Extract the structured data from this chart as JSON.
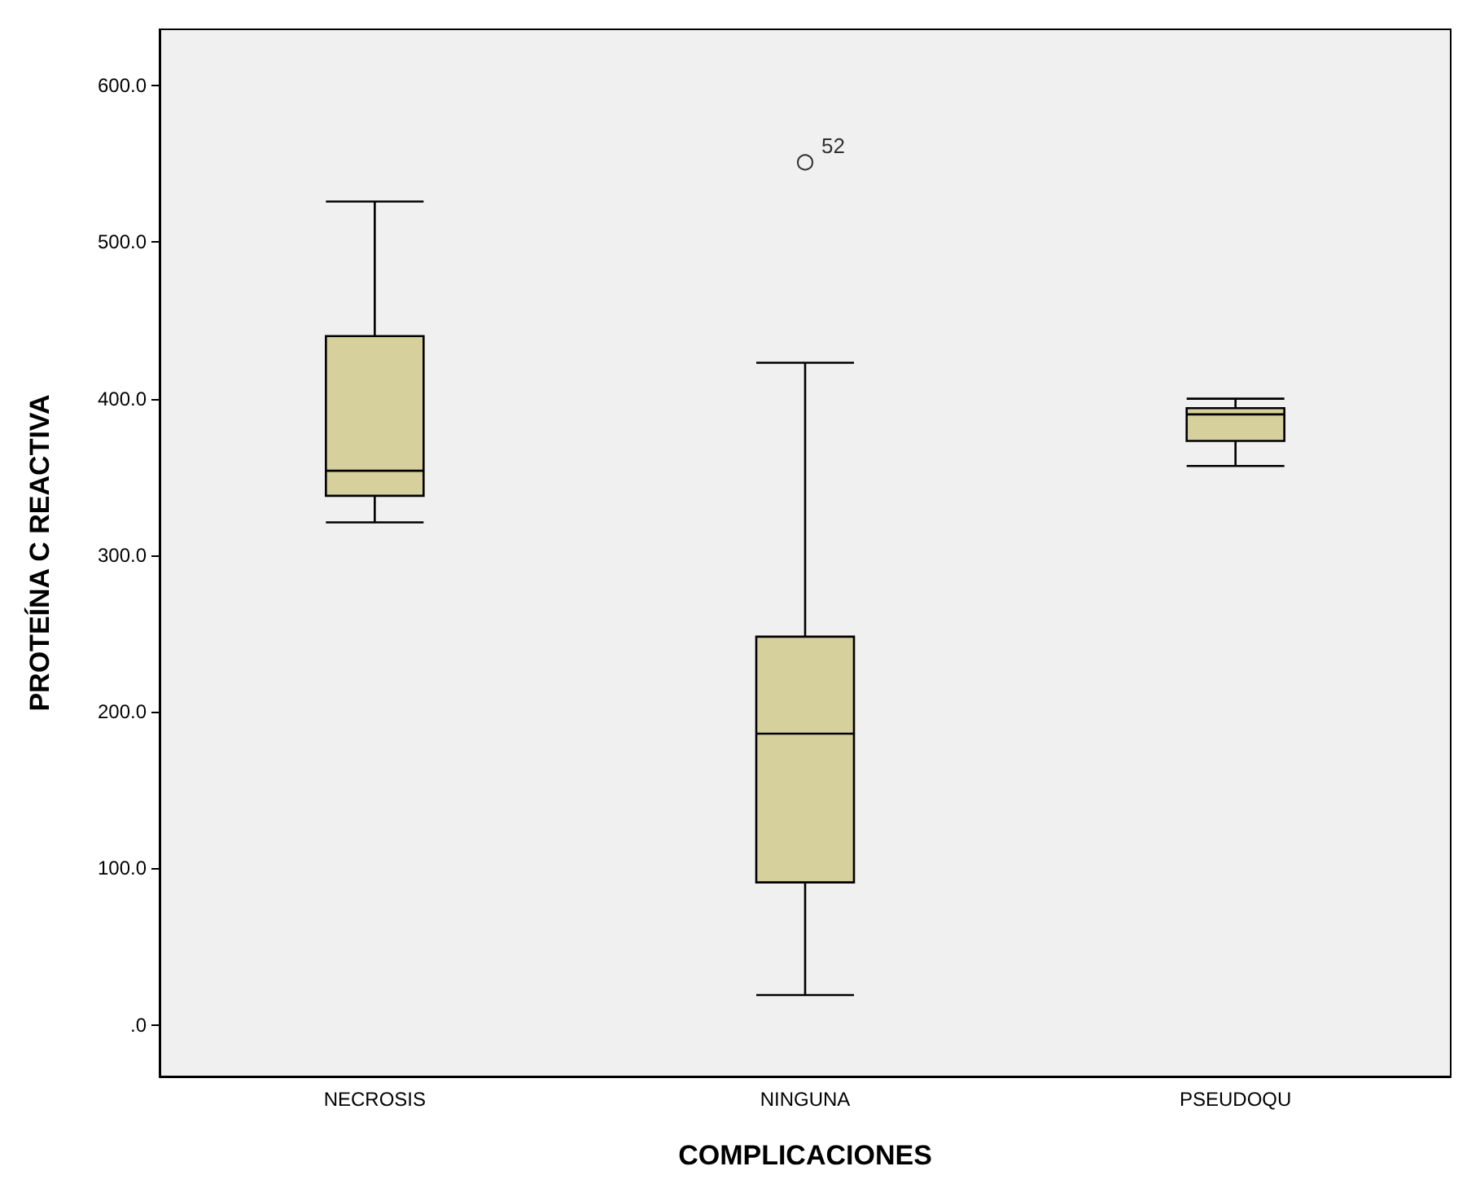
{
  "chart_data": {
    "type": "box",
    "xlabel": "COMPLICACIONES",
    "ylabel": "PROTEÍNA C REACTIVA",
    "categories": [
      "NECROSIS",
      "NINGUNA",
      "PSEUDOQU"
    ],
    "series": [
      {
        "color": "#d6d09c",
        "boxes": [
          {
            "low": 321,
            "q1": 338,
            "median": 354,
            "q3": 440,
            "high": 526
          },
          {
            "low": 19,
            "q1": 91,
            "median": 186,
            "q3": 248,
            "high": 423,
            "outliers": [
              551
            ]
          },
          {
            "low": 357,
            "q1": 373,
            "median": 390,
            "q3": 394,
            "high": 400
          }
        ]
      }
    ],
    "ylim": [
      -33,
      636
    ],
    "yticks": [
      {
        "value": 0,
        "label": ".0"
      },
      {
        "value": 100,
        "label": "100.0"
      },
      {
        "value": 200,
        "label": "200.0"
      },
      {
        "value": 300,
        "label": "300.0"
      },
      {
        "value": 400,
        "label": "400.0"
      },
      {
        "value": 500,
        "label": "500.0"
      },
      {
        "value": 600,
        "label": "600.0"
      }
    ],
    "annotations": [
      "52"
    ],
    "marker": "circle",
    "grid": false
  }
}
